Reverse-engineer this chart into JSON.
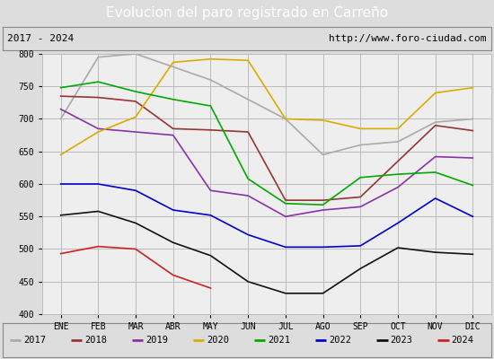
{
  "title": "Evolucion del paro registrado en Carreño",
  "subtitle_left": "2017 - 2024",
  "subtitle_right": "http://www.foro-ciudad.com",
  "ylim": [
    400,
    800
  ],
  "months": [
    "ENE",
    "FEB",
    "MAR",
    "ABR",
    "MAY",
    "JUN",
    "JUL",
    "AGO",
    "SEP",
    "OCT",
    "NOV",
    "DIC"
  ],
  "series": {
    "2017": {
      "color": "#aaaaaa",
      "data": [
        700,
        795,
        800,
        780,
        760,
        730,
        700,
        645,
        660,
        665,
        695,
        700
      ]
    },
    "2018": {
      "color": "#993333",
      "data": [
        735,
        733,
        727,
        685,
        683,
        680,
        575,
        575,
        580,
        635,
        690,
        682
      ]
    },
    "2019": {
      "color": "#8833aa",
      "data": [
        715,
        685,
        680,
        675,
        590,
        582,
        550,
        560,
        565,
        595,
        642,
        640
      ]
    },
    "2020": {
      "color": "#ddaa00",
      "data": [
        645,
        680,
        703,
        787,
        792,
        790,
        700,
        698,
        685,
        685,
        740,
        748
      ]
    },
    "2021": {
      "color": "#00aa00",
      "data": [
        748,
        757,
        742,
        730,
        720,
        608,
        570,
        568,
        610,
        615,
        618,
        598
      ]
    },
    "2022": {
      "color": "#0000cc",
      "data": [
        600,
        600,
        590,
        560,
        552,
        522,
        503,
        503,
        505,
        540,
        578,
        550
      ]
    },
    "2023": {
      "color": "#111111",
      "data": [
        552,
        558,
        540,
        510,
        490,
        450,
        432,
        432,
        470,
        502,
        495,
        492
      ]
    },
    "2024": {
      "color": "#cc2222",
      "data": [
        493,
        504,
        500,
        460,
        440,
        null,
        null,
        null,
        null,
        null,
        null,
        null
      ]
    }
  },
  "bg_color": "#dddddd",
  "plot_bg_color": "#eeeeee",
  "title_bg_color": "#5588cc",
  "title_color": "#ffffff",
  "grid_color": "#bbbbbb",
  "subtitle_border_color": "#888888"
}
